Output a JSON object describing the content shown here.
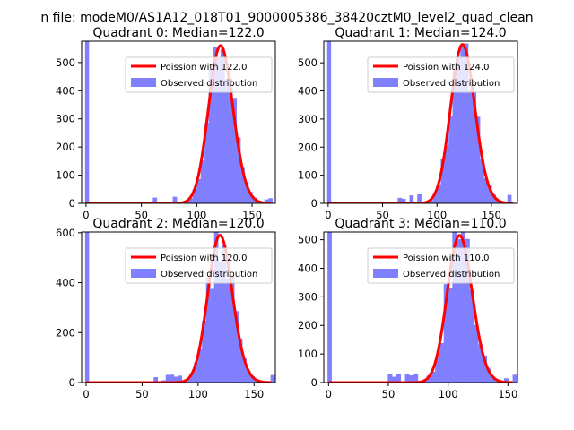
{
  "figure": {
    "suptitle": "n file: modeM0/AS1A12_018T01_9000005386_38420cztM0_level2_quad_clean"
  },
  "colors": {
    "hist": "#8080ff",
    "poisson": "#ff0000"
  },
  "chart_data": [
    {
      "type": "bar",
      "title": "Quadrant 0: Median=122.0",
      "median": 122.0,
      "xlim": [
        -4,
        171
      ],
      "ylim": [
        0,
        576
      ],
      "xticks": [
        0,
        50,
        100,
        150
      ],
      "yticks": [
        0,
        100,
        200,
        300,
        400,
        500
      ],
      "legend": [
        "Poission with 122.0",
        "Observed distribution"
      ],
      "legend_position": "upper right",
      "zero_bar_value": 576
    },
    {
      "type": "bar",
      "title": "Quadrant 1: Median=124.0",
      "median": 124.0,
      "xlim": [
        -4,
        174
      ],
      "ylim": [
        0,
        577
      ],
      "xticks": [
        0,
        50,
        100,
        150
      ],
      "yticks": [
        0,
        100,
        200,
        300,
        400,
        500
      ],
      "legend": [
        "Poission with 124.0",
        "Observed distribution"
      ],
      "legend_position": "upper right",
      "zero_bar_value": 577
    },
    {
      "type": "bar",
      "title": "Quadrant 2: Median=120.0",
      "median": 120.0,
      "xlim": [
        -4,
        169
      ],
      "ylim": [
        0,
        603
      ],
      "xticks": [
        0,
        50,
        100,
        150
      ],
      "yticks": [
        0,
        200,
        400,
        600
      ],
      "legend": [
        "Poission with 120.0",
        "Observed distribution"
      ],
      "legend_position": "upper right",
      "zero_bar_value": 603
    },
    {
      "type": "bar",
      "title": "Quadrant 3: Median=110.0",
      "median": 110.0,
      "xlim": [
        -4,
        158
      ],
      "ylim": [
        0,
        527
      ],
      "xticks": [
        0,
        50,
        100,
        150
      ],
      "yticks": [
        0,
        100,
        200,
        300,
        400,
        500
      ],
      "legend": [
        "Poission with 110.0",
        "Observed distribution"
      ],
      "legend_position": "upper right",
      "zero_bar_value": 527
    }
  ]
}
